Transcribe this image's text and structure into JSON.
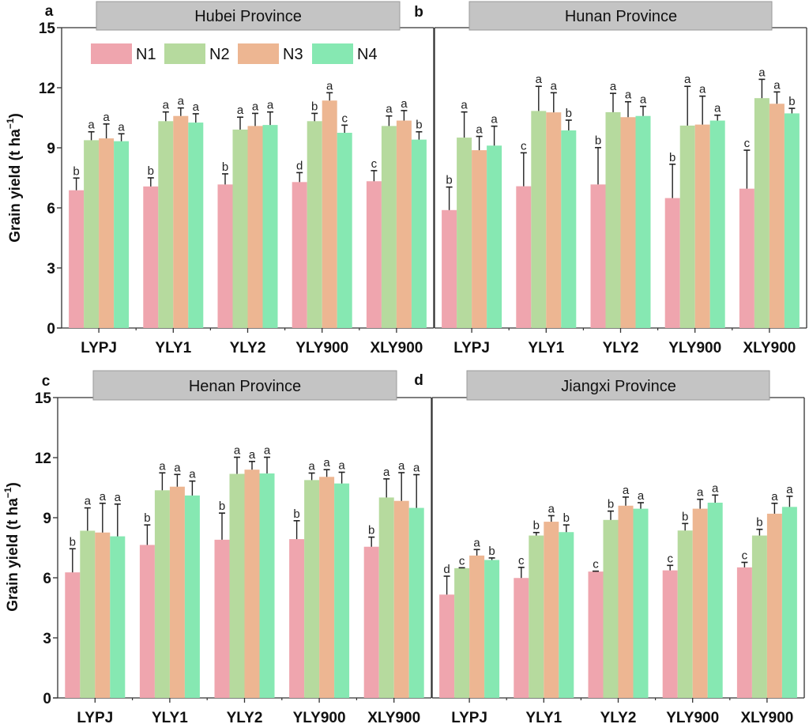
{
  "chart_data": {
    "type": "bar",
    "ylabel": "Grain yield (t ha",
    "ylabel_superscript": "−1",
    "ylabel_suffix": ")",
    "ylim": [
      0,
      15
    ],
    "yticks": [
      0,
      3,
      6,
      9,
      12,
      15
    ],
    "categories": [
      "LYPJ",
      "YLY1",
      "YLY2",
      "YLY900",
      "XLY900"
    ],
    "legend": {
      "position": "top-left inside panel a",
      "entries": [
        {
          "name": "N1",
          "color": "#EFA5AE"
        },
        {
          "name": "N2",
          "color": "#B6DA9E"
        },
        {
          "name": "N3",
          "color": "#EDB692"
        },
        {
          "name": "N4",
          "color": "#86E8B2"
        }
      ]
    },
    "panels": [
      {
        "letter": "a",
        "title": "Hubei Province",
        "series": [
          {
            "name": "N1",
            "values": [
              6.88,
              7.07,
              7.17,
              7.29,
              7.33
            ],
            "errors": [
              0.61,
              0.43,
              0.53,
              0.47,
              0.53
            ],
            "letters": [
              "b",
              "b",
              "b",
              "d",
              "c"
            ]
          },
          {
            "name": "N2",
            "values": [
              9.38,
              10.33,
              9.91,
              10.33,
              10.09
            ],
            "errors": [
              0.42,
              0.46,
              0.62,
              0.39,
              0.5
            ],
            "letters": [
              "a",
              "a",
              "a",
              "b",
              "a"
            ]
          },
          {
            "name": "N3",
            "values": [
              9.47,
              10.59,
              10.09,
              11.36,
              10.36
            ],
            "errors": [
              0.72,
              0.4,
              0.63,
              0.39,
              0.5
            ],
            "letters": [
              "a",
              "a",
              "a",
              "a",
              "a"
            ]
          },
          {
            "name": "N4",
            "values": [
              9.33,
              10.26,
              10.14,
              9.75,
              9.41
            ],
            "errors": [
              0.37,
              0.44,
              0.65,
              0.38,
              0.39
            ],
            "letters": [
              "a",
              "a",
              "a",
              "c",
              "b"
            ]
          }
        ]
      },
      {
        "letter": "b",
        "title": "Hunan Province",
        "series": [
          {
            "name": "N1",
            "values": [
              5.89,
              7.08,
              7.17,
              6.49,
              6.96
            ],
            "errors": [
              1.15,
              1.67,
              1.84,
              1.69,
              1.92
            ],
            "letters": [
              "b",
              "c",
              "b",
              "b",
              "c"
            ]
          },
          {
            "name": "N2",
            "values": [
              9.51,
              10.84,
              10.78,
              10.11,
              11.48
            ],
            "errors": [
              1.28,
              1.23,
              0.94,
              1.96,
              0.94
            ],
            "letters": [
              "a",
              "a",
              "a",
              "a",
              "a"
            ]
          },
          {
            "name": "N3",
            "values": [
              8.88,
              10.77,
              10.53,
              10.16,
              11.2
            ],
            "errors": [
              0.69,
              0.98,
              0.77,
              1.42,
              0.59
            ],
            "letters": [
              "a",
              "a",
              "a",
              "a",
              "a"
            ]
          },
          {
            "name": "N4",
            "values": [
              9.11,
              9.87,
              10.59,
              10.36,
              10.72
            ],
            "errors": [
              0.97,
              0.51,
              0.48,
              0.27,
              0.25
            ],
            "letters": [
              "a",
              "b",
              "a",
              "a",
              "b"
            ]
          }
        ]
      },
      {
        "letter": "c",
        "title": "Henan Province",
        "series": [
          {
            "name": "N1",
            "values": [
              6.27,
              7.64,
              7.9,
              7.93,
              7.55
            ],
            "errors": [
              1.18,
              1.0,
              1.33,
              0.92,
              0.48
            ],
            "letters": [
              "b",
              "b",
              "b",
              "b",
              "b"
            ]
          },
          {
            "name": "N2",
            "values": [
              8.35,
              10.37,
              11.19,
              10.88,
              10.01
            ],
            "errors": [
              1.14,
              0.87,
              0.83,
              0.35,
              0.93
            ],
            "letters": [
              "a",
              "a",
              "a",
              "a",
              "a"
            ]
          },
          {
            "name": "N3",
            "values": [
              8.26,
              10.55,
              11.4,
              11.04,
              9.84
            ],
            "errors": [
              1.46,
              0.61,
              0.41,
              0.36,
              1.41
            ],
            "letters": [
              "a",
              "a",
              "a",
              "a",
              "a"
            ]
          },
          {
            "name": "N4",
            "values": [
              8.07,
              10.11,
              11.21,
              10.71,
              9.49
            ],
            "errors": [
              1.61,
              0.72,
              0.81,
              0.56,
              1.66
            ],
            "letters": [
              "a",
              "a",
              "a",
              "a",
              "a"
            ]
          }
        ]
      },
      {
        "letter": "d",
        "title": "Jiangxi Province",
        "series": [
          {
            "name": "N1",
            "values": [
              5.16,
              5.99,
              6.31,
              6.37,
              6.52
            ],
            "errors": [
              0.92,
              0.53,
              0.02,
              0.25,
              0.25
            ],
            "letters": [
              "d",
              "c",
              "c",
              "c",
              "c"
            ]
          },
          {
            "name": "N2",
            "values": [
              6.48,
              8.11,
              8.89,
              8.36,
              8.11
            ],
            "errors": [
              0.02,
              0.15,
              0.44,
              0.35,
              0.31
            ],
            "letters": [
              "c",
              "b",
              "b",
              "b",
              "b"
            ]
          },
          {
            "name": "N3",
            "values": [
              7.11,
              8.8,
              9.6,
              9.45,
              9.2
            ],
            "errors": [
              0.3,
              0.3,
              0.43,
              0.47,
              0.52
            ],
            "letters": [
              "a",
              "a",
              "a",
              "a",
              "a"
            ]
          },
          {
            "name": "N4",
            "values": [
              6.89,
              8.28,
              9.45,
              9.75,
              9.54
            ],
            "errors": [
              0.1,
              0.36,
              0.3,
              0.38,
              0.53
            ],
            "letters": [
              "b",
              "b",
              "a",
              "a",
              "a"
            ]
          }
        ]
      }
    ]
  }
}
